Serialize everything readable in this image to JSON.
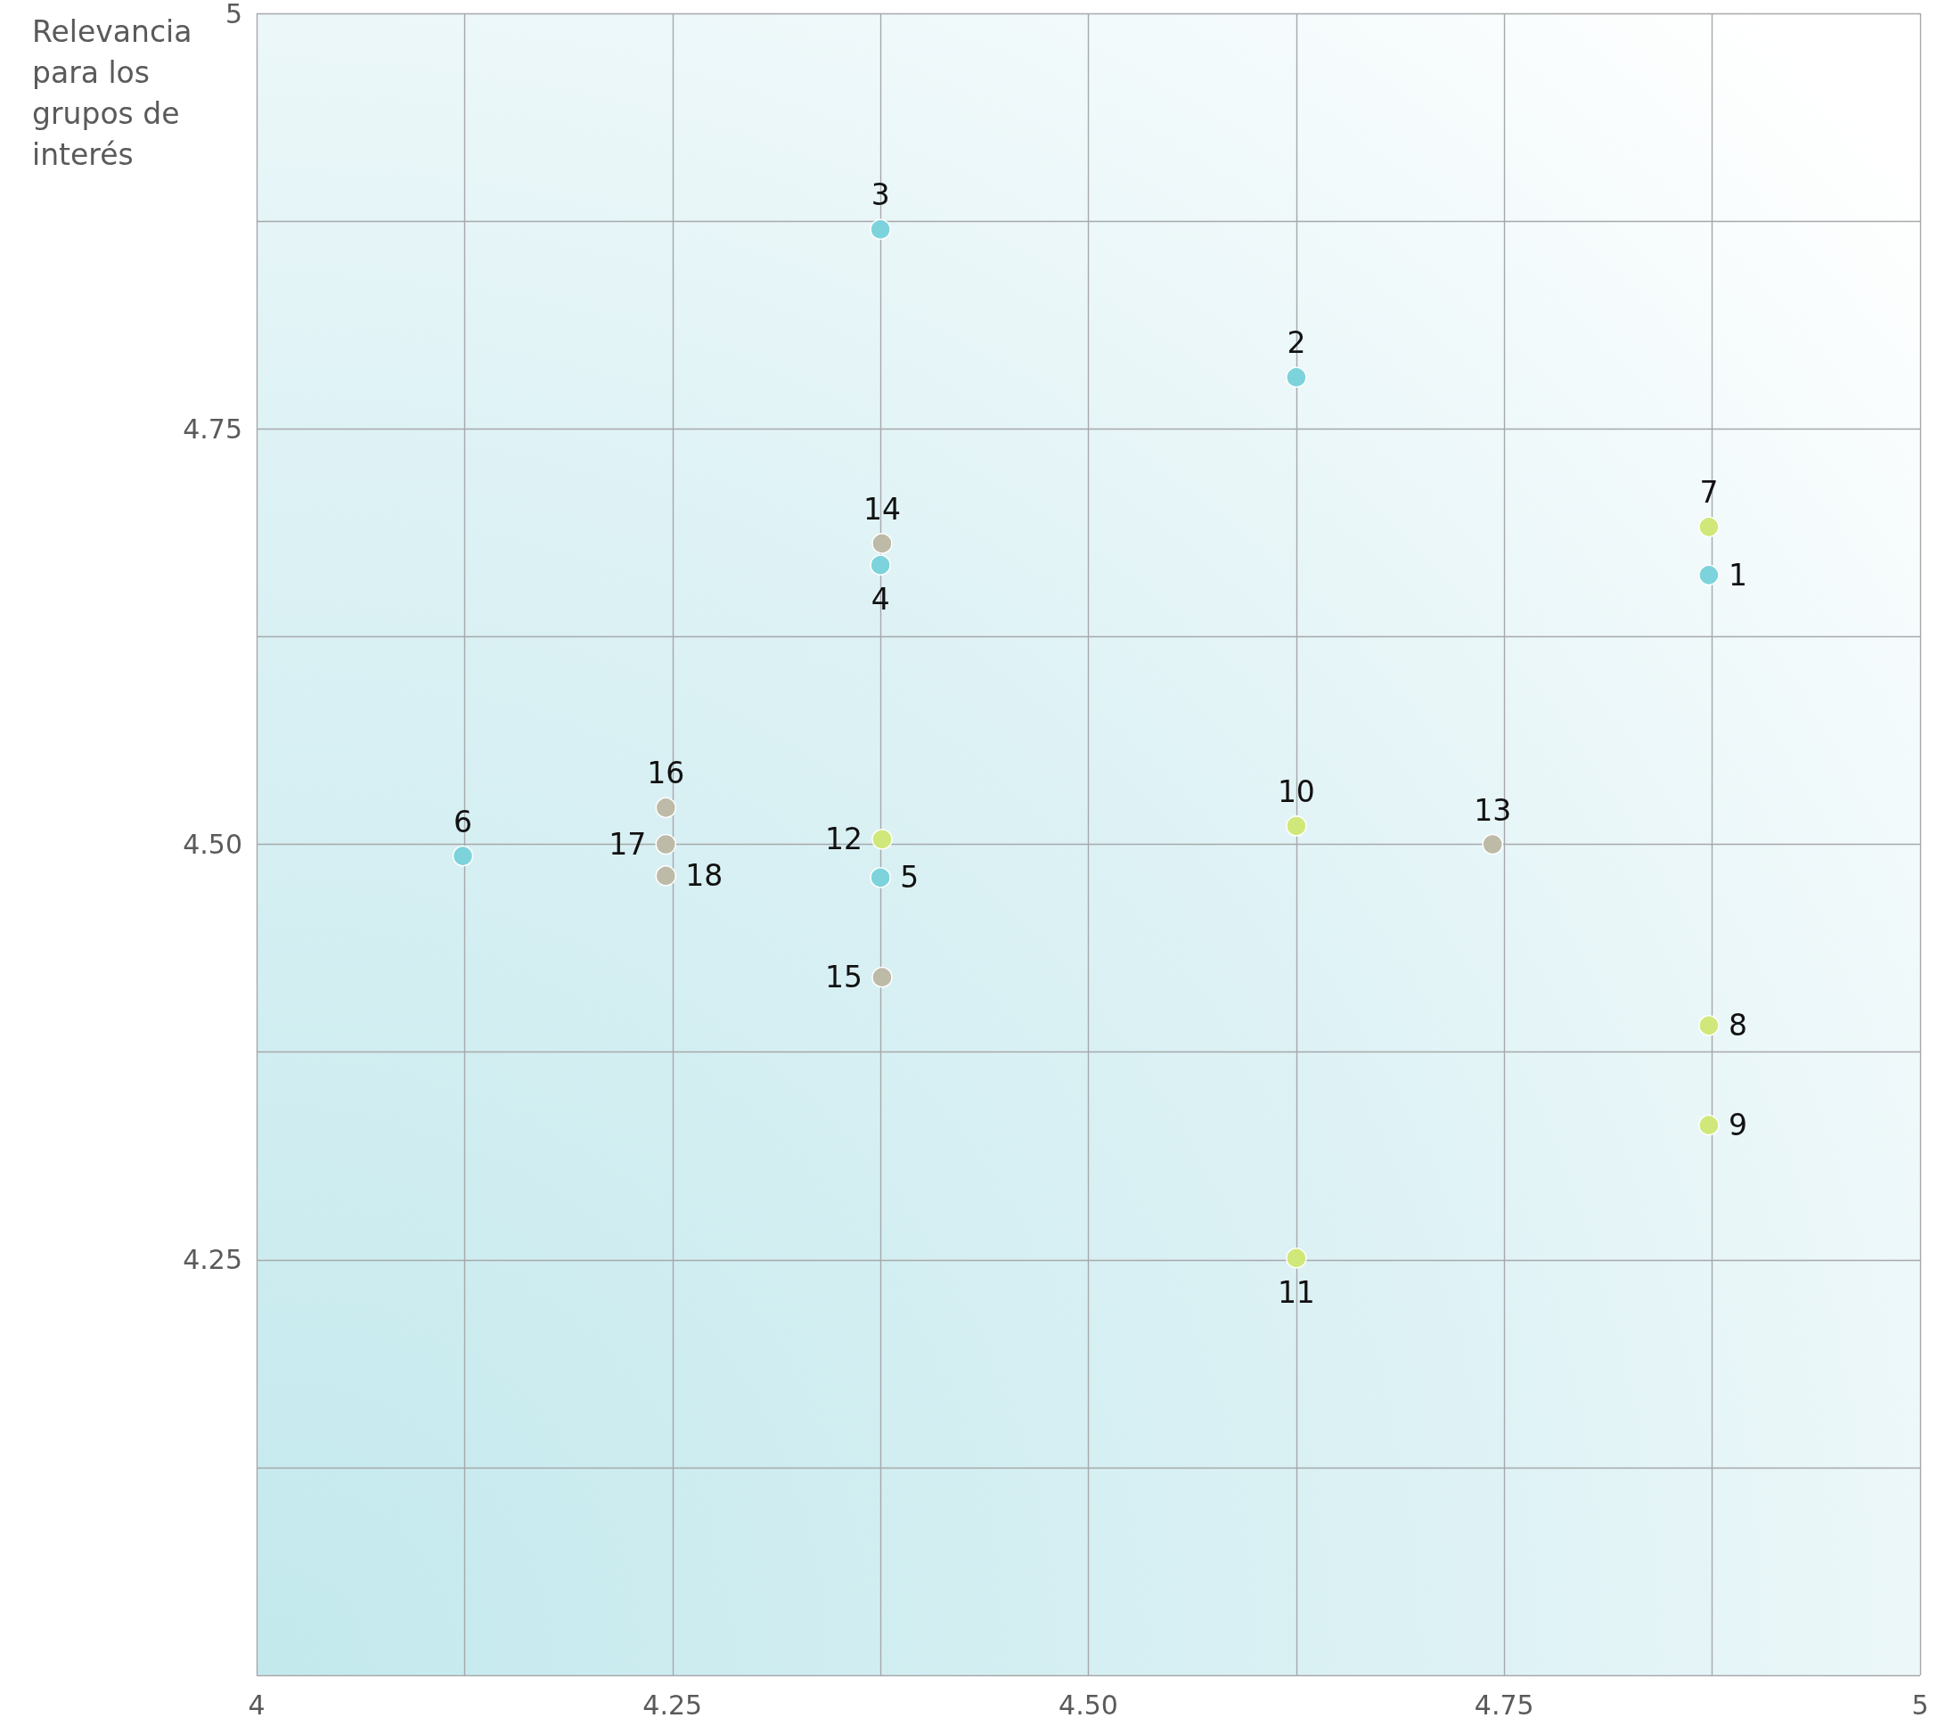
{
  "chart_data": {
    "type": "scatter",
    "ylabel": "Relevancia para los grupos de interés",
    "xlim": [
      4,
      5
    ],
    "ylim": [
      4,
      5
    ],
    "xticks": [
      4,
      {
        "value": 4.125,
        "label": null
      },
      4.25,
      {
        "value": 4.375,
        "label": null
      },
      {
        "value": 4.5,
        "label": "4.50"
      },
      {
        "value": 4.625,
        "label": null
      },
      4.75,
      {
        "value": 4.875,
        "label": null
      },
      5
    ],
    "yticks": [
      {
        "value": 4,
        "label": null
      },
      {
        "value": 4.125,
        "label": null
      },
      4.25,
      {
        "value": 4.375,
        "label": null
      },
      {
        "value": 4.5,
        "label": "4.50"
      },
      {
        "value": 4.625,
        "label": null
      },
      4.75,
      {
        "value": 4.875,
        "label": null
      },
      5
    ],
    "grid": true,
    "marker": "circle",
    "series": [
      {
        "color": "#7dd3db",
        "x": [
          4.873,
          4.625,
          4.375,
          4.375,
          4.375,
          4.124
        ],
        "values": [
          4.662,
          4.781,
          4.87,
          4.668,
          4.48,
          4.493
        ]
      },
      {
        "color": "#d0e87a",
        "x": [
          4.873,
          4.873,
          4.873,
          4.625,
          4.625,
          4.376
        ],
        "values": [
          4.691,
          4.391,
          4.331,
          4.511,
          4.251,
          4.503
        ]
      },
      {
        "color": "#bdbba8",
        "x": [
          4.743,
          4.376,
          4.376,
          4.246,
          4.246,
          4.246
        ],
        "values": [
          4.5,
          4.681,
          4.42,
          4.522,
          4.5,
          4.481
        ]
      }
    ],
    "annotations": [
      {
        "text": "1",
        "x": 4.873,
        "y": 4.662
      },
      {
        "text": "2",
        "x": 4.625,
        "y": 4.781
      },
      {
        "text": "3",
        "x": 4.375,
        "y": 4.87
      },
      {
        "text": "4",
        "x": 4.375,
        "y": 4.668
      },
      {
        "text": "5",
        "x": 4.375,
        "y": 4.48
      },
      {
        "text": "6",
        "x": 4.124,
        "y": 4.493
      },
      {
        "text": "7",
        "x": 4.873,
        "y": 4.691
      },
      {
        "text": "8",
        "x": 4.873,
        "y": 4.391
      },
      {
        "text": "9",
        "x": 4.873,
        "y": 4.331
      },
      {
        "text": "10",
        "x": 4.625,
        "y": 4.511
      },
      {
        "text": "11",
        "x": 4.625,
        "y": 4.251
      },
      {
        "text": "12",
        "x": 4.376,
        "y": 4.503
      },
      {
        "text": "13",
        "x": 4.743,
        "y": 4.5
      },
      {
        "text": "14",
        "x": 4.376,
        "y": 4.681
      },
      {
        "text": "15",
        "x": 4.376,
        "y": 4.42
      },
      {
        "text": "16",
        "x": 4.246,
        "y": 4.522
      },
      {
        "text": "17",
        "x": 4.246,
        "y": 4.5
      },
      {
        "text": "18",
        "x": 4.246,
        "y": 4.481
      }
    ]
  }
}
